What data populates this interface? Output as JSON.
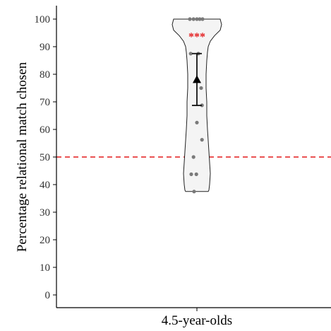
{
  "chart_data": {
    "type": "violin",
    "categories": [
      "4.5-year-olds"
    ],
    "ylabel": "Percentage relational match chosen",
    "xlabel": "",
    "ylim": [
      0,
      100
    ],
    "yticks": [
      0,
      10,
      20,
      30,
      40,
      50,
      60,
      70,
      80,
      90,
      100
    ],
    "reference_line": {
      "value": 50,
      "style": "dashed",
      "color": "#e41a1c"
    },
    "significance_label": "***",
    "significance_color": "#e41a1c",
    "mean": 78.1,
    "error_bar": [
      68.7,
      87.5
    ],
    "violin_range": [
      37.5,
      100
    ],
    "points": [
      {
        "y": 100,
        "jitter": -0.25
      },
      {
        "y": 100,
        "jitter": -0.12
      },
      {
        "y": 100,
        "jitter": 0.0
      },
      {
        "y": 100,
        "jitter": 0.1
      },
      {
        "y": 100,
        "jitter": 0.2
      },
      {
        "y": 87.5,
        "jitter": -0.22
      },
      {
        "y": 87.5,
        "jitter": 0.05
      },
      {
        "y": 75,
        "jitter": 0.15
      },
      {
        "y": 68.75,
        "jitter": 0.18
      },
      {
        "y": 62.5,
        "jitter": 0.0
      },
      {
        "y": 56.25,
        "jitter": 0.18
      },
      {
        "y": 50,
        "jitter": -0.12
      },
      {
        "y": 43.75,
        "jitter": -0.2
      },
      {
        "y": 43.75,
        "jitter": -0.02
      },
      {
        "y": 37.5,
        "jitter": -0.1
      }
    ],
    "violin_color": "#f4f4f4",
    "grid": false
  }
}
